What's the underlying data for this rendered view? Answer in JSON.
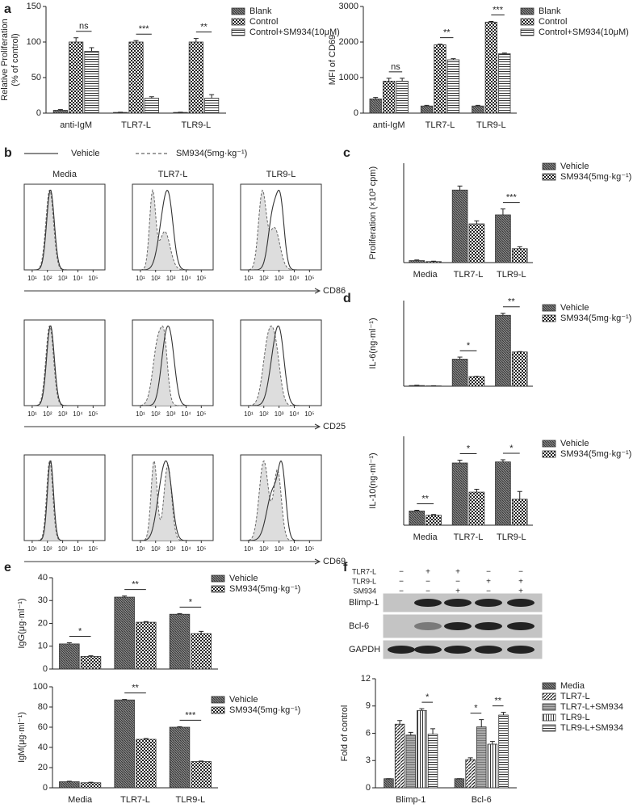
{
  "panel_labels": [
    "a",
    "b",
    "c",
    "d",
    "e",
    "f"
  ],
  "chart_data": [
    {
      "type": "bar",
      "y_label": [
        "Relative Proliferation",
        "(% of control)"
      ],
      "categories": [
        "anti-IgM",
        "TLR7-L",
        "TLR9-L"
      ],
      "series": [
        {
          "name": "Blank",
          "color": "#333333",
          "pattern": "dense",
          "values": [
            4,
            1,
            1
          ],
          "errors": [
            1,
            0.3,
            0.3
          ]
        },
        {
          "name": "Control",
          "color": "#333333",
          "pattern": "check",
          "values": [
            100,
            100,
            100
          ],
          "errors": [
            6,
            2,
            5
          ]
        },
        {
          "name": "Control+SM934(10μM)",
          "color": "#333333",
          "pattern": "hline",
          "values": [
            87,
            21,
            21
          ],
          "errors": [
            5,
            2,
            5
          ]
        }
      ],
      "ylim": [
        0,
        150
      ],
      "yticks": [
        0,
        50,
        100,
        150
      ],
      "significance": [
        [
          "ns"
        ],
        [
          "***"
        ],
        [
          "**"
        ]
      ],
      "legend": "outside right"
    },
    {
      "type": "bar",
      "y_label": [
        "MFI of CD69"
      ],
      "categories": [
        "anti-IgM",
        "TLR7-L",
        "TLR9-L"
      ],
      "series": [
        {
          "name": "Blank",
          "color": "#333333",
          "pattern": "dense",
          "values": [
            400,
            200,
            200
          ],
          "errors": [
            40,
            20,
            20
          ]
        },
        {
          "name": "Control",
          "color": "#333333",
          "pattern": "check",
          "values": [
            900,
            1920,
            2560
          ],
          "errors": [
            80,
            20,
            20
          ]
        },
        {
          "name": "Control+SM934(10μM)",
          "color": "#333333",
          "pattern": "hline",
          "values": [
            900,
            1500,
            1670
          ],
          "errors": [
            80,
            30,
            20
          ]
        }
      ],
      "ylim": [
        0,
        3000
      ],
      "yticks": [
        0,
        1000,
        2000,
        3000
      ],
      "significance": [
        [
          "ns"
        ],
        [
          "**"
        ],
        [
          "***"
        ]
      ],
      "legend": "outside right"
    },
    {
      "type": "bar",
      "y_label": [
        "Proliferation (×10³ cpm)"
      ],
      "categories": [
        "Media",
        "TLR7-L",
        "TLR9-L"
      ],
      "series": [
        {
          "name": "Vehicle",
          "color": "#333333",
          "pattern": "dense",
          "values": [
            1,
            36.5,
            24
          ],
          "errors": [
            0.3,
            2,
            3
          ]
        },
        {
          "name": "SM934(5mg·kg⁻¹)",
          "color": "#333333",
          "pattern": "check",
          "values": [
            0.5,
            19.5,
            7
          ],
          "errors": [
            0.2,
            1.5,
            1
          ]
        }
      ],
      "ylim": [
        0,
        50
      ],
      "significance": [
        [],
        [],
        [
          "***"
        ]
      ],
      "legend": "outside right"
    },
    {
      "type": "bar",
      "y_label": [
        "IL-6(ng·ml⁻¹)"
      ],
      "categories": [
        null,
        null,
        null
      ],
      "series": [
        {
          "name": "Vehicle",
          "color": "#333333",
          "pattern": "dense",
          "values": [
            0.02,
            0.79,
            2.07
          ],
          "errors": [
            0.01,
            0.06,
            0.06
          ]
        },
        {
          "name": "SM934(5mg·kg⁻¹)",
          "color": "#333333",
          "pattern": "check",
          "values": [
            0.01,
            0.28,
            1.0
          ],
          "errors": [
            0.005,
            0.01,
            0.01
          ]
        }
      ],
      "ylim": [
        0,
        2.5
      ],
      "significance": [
        [],
        [
          "*"
        ],
        [
          "**"
        ]
      ],
      "legend": "outside right"
    },
    {
      "type": "bar",
      "y_label": [
        "IL-10(ng·ml⁻¹)"
      ],
      "categories": [
        "Media",
        "TLR7-L",
        "TLR9-L"
      ],
      "series": [
        {
          "name": "Vehicle",
          "color": "#333333",
          "pattern": "dense",
          "values": [
            4,
            17.5,
            17.8
          ],
          "errors": [
            0.2,
            0.8,
            0.6
          ]
        },
        {
          "name": "SM934(5mg·kg⁻¹)",
          "color": "#333333",
          "pattern": "check",
          "values": [
            2.8,
            9.3,
            7.3
          ],
          "errors": [
            0.2,
            0.8,
            2.2
          ]
        }
      ],
      "ylim": [
        0,
        25
      ],
      "significance": [
        [
          "**"
        ],
        [
          "*"
        ],
        [
          "*"
        ]
      ],
      "legend": "outside right"
    },
    {
      "type": "bar",
      "y_label": [
        "IgG(μg·ml⁻¹)"
      ],
      "categories": [
        null,
        null,
        null
      ],
      "series": [
        {
          "name": "Vehicle",
          "color": "#333333",
          "pattern": "dense",
          "values": [
            11,
            31.5,
            24
          ],
          "errors": [
            0.5,
            0.5,
            0.3
          ]
        },
        {
          "name": "SM934(5mg·kg⁻¹)",
          "color": "#333333",
          "pattern": "check",
          "values": [
            5.5,
            20.5,
            15.5
          ],
          "errors": [
            0.3,
            0.3,
            1
          ]
        }
      ],
      "ylim": [
        0,
        40
      ],
      "yticks": [
        0,
        10,
        20,
        30,
        40
      ],
      "significance": [
        [
          "*"
        ],
        [
          "**"
        ],
        [
          "*"
        ]
      ],
      "legend": "outside right"
    },
    {
      "type": "bar",
      "y_label": [
        "IgM(μg·ml⁻¹)"
      ],
      "categories": [
        "Media",
        "TLR7-L",
        "TLR9-L"
      ],
      "series": [
        {
          "name": "Vehicle",
          "color": "#333333",
          "pattern": "dense",
          "values": [
            6,
            87,
            60
          ],
          "errors": [
            0.5,
            0.5,
            0.5
          ]
        },
        {
          "name": "SM934(5mg·kg⁻¹)",
          "color": "#333333",
          "pattern": "check",
          "values": [
            5,
            48,
            26
          ],
          "errors": [
            0.5,
            0.8,
            0.5
          ]
        }
      ],
      "ylim": [
        0,
        100
      ],
      "yticks": [
        0,
        20,
        40,
        60,
        80,
        100
      ],
      "significance": [
        [],
        [
          "**"
        ],
        [
          "***"
        ]
      ],
      "legend": "outside right"
    },
    {
      "type": "bar",
      "y_label": [
        "Fold of control"
      ],
      "categories": [
        "Blimp-1",
        "Bcl-6"
      ],
      "series": [
        {
          "name": "Media",
          "color": "#333333",
          "pattern": "dense",
          "values": [
            1,
            1
          ],
          "errors": [
            0,
            0
          ]
        },
        {
          "name": "TLR7-L",
          "color": "#333333",
          "pattern": "diag",
          "values": [
            7,
            3.1
          ],
          "errors": [
            0.4,
            0.2
          ]
        },
        {
          "name": "TLR7-L+SM934",
          "color": "#333333",
          "pattern": "gray",
          "values": [
            5.8,
            6.7
          ],
          "errors": [
            0.3,
            0.8
          ]
        },
        {
          "name": "TLR9-L",
          "color": "#333333",
          "pattern": "vline",
          "values": [
            8.5,
            4.8
          ],
          "errors": [
            0.2,
            0.3
          ]
        },
        {
          "name": "TLR9-L+SM934",
          "color": "#333333",
          "pattern": "hline",
          "values": [
            5.9,
            8
          ],
          "errors": [
            0.6,
            0.3
          ]
        }
      ],
      "ylim": [
        0,
        12
      ],
      "yticks": [
        0,
        3,
        6,
        9,
        12
      ],
      "significance": [
        [
          "*"
        ],
        [
          "*",
          "**"
        ]
      ],
      "legend": "outside right"
    }
  ],
  "flow": {
    "legend": [
      "Vehicle",
      "SM934(5mg·kg⁻¹)"
    ],
    "columns": [
      "Media",
      "TLR7-L",
      "TLR9-L"
    ],
    "markers": [
      "CD86",
      "CD25",
      "CD69"
    ],
    "xscale": "log",
    "xlim": [
      3,
      600000
    ],
    "xticks": [
      {
        "value": 10,
        "label": "10¹"
      },
      {
        "value": 100,
        "label": "10²"
      },
      {
        "value": 1000,
        "label": "10³"
      },
      {
        "value": 10000,
        "label": "10⁴"
      },
      {
        "value": 100000,
        "label": "10⁵"
      }
    ]
  },
  "blot": {
    "conditions": [
      {
        "label": "TLR7-L",
        "marks": [
          "−",
          "+",
          "+",
          "−",
          "−"
        ]
      },
      {
        "label": "TLR9-L",
        "marks": [
          "−",
          "−",
          "−",
          "+",
          "+"
        ]
      },
      {
        "label": "SM934",
        "marks": [
          "−",
          "−",
          "+",
          "−",
          "+"
        ]
      }
    ],
    "bands": [
      "Blimp-1",
      "Bcl-6",
      "GAPDH"
    ]
  }
}
